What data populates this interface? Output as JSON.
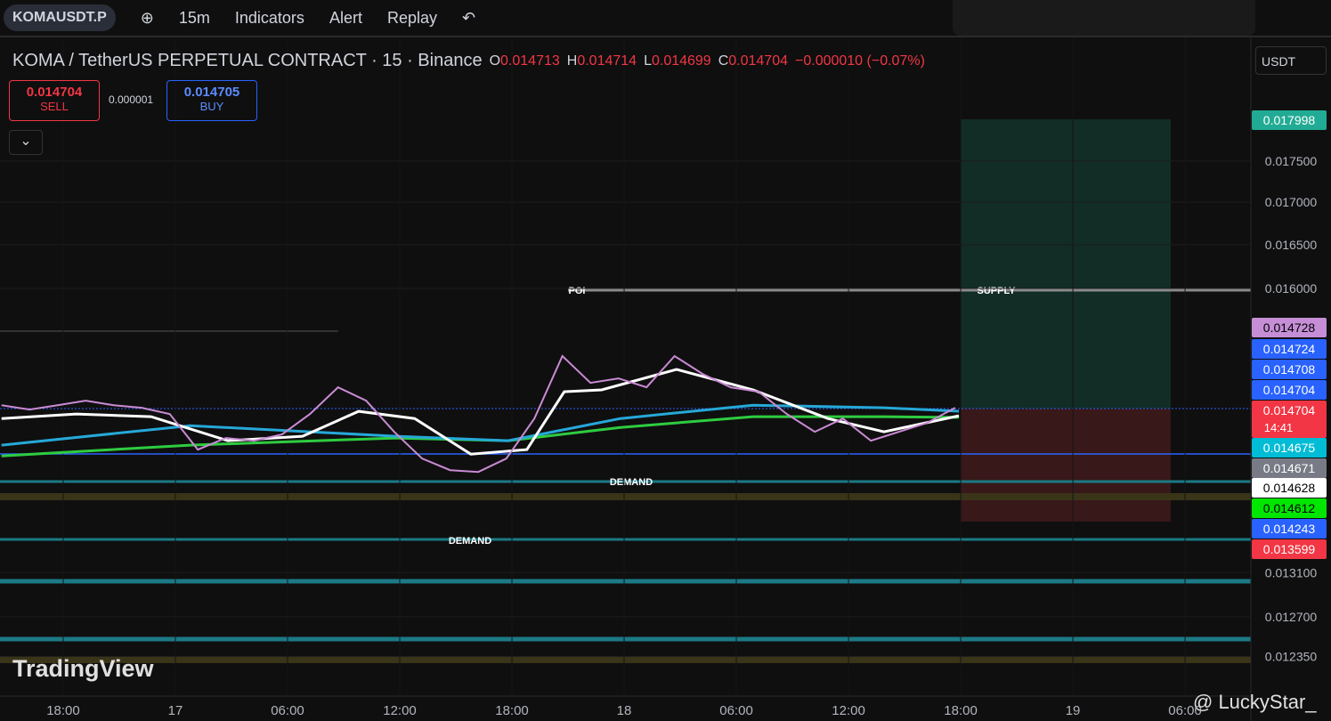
{
  "toolbar": {
    "symbol": "KOMAUSDT.P",
    "interval": "15m",
    "indicators": "Indicators",
    "alert": "Alert",
    "replay": "Replay"
  },
  "legend": {
    "title": "KOMA / TetherUS PERPETUAL CONTRACT · 15 · Binance",
    "ohlc": [
      {
        "label": "O",
        "value": 0.014713
      },
      {
        "label": "H",
        "value": 0.014714
      },
      {
        "label": "L",
        "value": 0.014699
      },
      {
        "label": "C",
        "value": 0.014704
      }
    ],
    "change": "−0.000010 (−0.07%)"
  },
  "trade": {
    "sell_price": 0.014704,
    "sell_label": "SELL",
    "spread": 1e-06,
    "buy_price": 0.014705,
    "buy_label": "BUY"
  },
  "currency": "USDT",
  "chart_data": {
    "type": "line",
    "log_scale": true,
    "grid": true,
    "xlim": [
      14.62,
      81.52
    ],
    "xticks": [
      {
        "value": 18,
        "label": "18:00"
      },
      {
        "value": 24,
        "label": "17"
      },
      {
        "value": 30,
        "label": "06:00"
      },
      {
        "value": 36,
        "label": "12:00"
      },
      {
        "value": 42,
        "label": "18:00"
      },
      {
        "value": 48,
        "label": "18"
      },
      {
        "value": 54,
        "label": "06:00"
      },
      {
        "value": 60,
        "label": "12:00"
      },
      {
        "value": 66,
        "label": "18:00"
      },
      {
        "value": 72,
        "label": "19"
      },
      {
        "value": 78,
        "label": "06:00"
      }
    ],
    "ylim": [
      0.01201,
      0.01909
    ],
    "yticks": [
      {
        "value": 0.0175,
        "label": "0.017500"
      },
      {
        "value": 0.017,
        "label": "0.017000"
      },
      {
        "value": 0.0165,
        "label": "0.016500"
      },
      {
        "value": 0.016,
        "label": "0.016000"
      },
      {
        "value": 0.0131,
        "label": "0.013100"
      },
      {
        "value": 0.0127,
        "label": "0.012700"
      },
      {
        "value": 0.01235,
        "label": "0.012350"
      }
    ],
    "series": [
      {
        "color": "#c98bd4",
        "x": [
          14.7,
          16.2,
          17.7,
          19.2,
          20.7,
          22.2,
          23.7,
          25.2,
          26.7,
          28.2,
          29.7,
          31.2,
          32.7,
          34.2,
          35.7,
          37.2,
          38.7,
          40.2,
          41.7,
          43.2,
          44.7,
          46.2,
          47.7,
          49.2,
          50.7,
          52.2,
          53.7,
          55.2,
          56.7,
          58.2,
          59.7,
          61.2,
          62.7,
          64.2,
          65.7
        ],
        "values": [
          0.014738,
          0.014692,
          0.014738,
          0.014785,
          0.014738,
          0.014711,
          0.014646,
          0.014284,
          0.014401,
          0.014374,
          0.014437,
          0.014646,
          0.014924,
          0.014785,
          0.014464,
          0.014194,
          0.014079,
          0.014061,
          0.014194,
          0.0146,
          0.015256,
          0.014971,
          0.015018,
          0.014924,
          0.015256,
          0.015065,
          0.014924,
          0.014878,
          0.014646,
          0.014464,
          0.0146,
          0.014374,
          0.014464,
          0.014555,
          0.014711
        ]
      },
      {
        "color": "#ffffff",
        "x": [
          14.7,
          18.7,
          22.7,
          26.8,
          30.8,
          33.8,
          36.8,
          39.8,
          42.8,
          44.8,
          46.8,
          50.8,
          54.9,
          58.9,
          61.9,
          65.9
        ],
        "values": [
          0.0146,
          0.014646,
          0.014619,
          0.014374,
          0.014419,
          0.014674,
          0.0146,
          0.014239,
          0.014284,
          0.014878,
          0.014897,
          0.015113,
          0.014897,
          0.0146,
          0.014464,
          0.014628
        ]
      },
      {
        "color": "#26a8d8",
        "x": [
          14.7,
          24.8,
          35.8,
          41.8,
          47.8,
          54.9,
          61.9,
          65.9
        ],
        "values": [
          0.014329,
          0.014527,
          0.014419,
          0.014374,
          0.0146,
          0.014738,
          0.014711,
          0.014675
        ]
      },
      {
        "color": "#2ecc40",
        "x": [
          14.7,
          24.8,
          35.8,
          41.8,
          47.8,
          54.9,
          61.9,
          65.9
        ],
        "values": [
          0.014221,
          0.014329,
          0.014401,
          0.014374,
          0.014509,
          0.014619,
          0.014619,
          0.014612
        ]
      }
    ],
    "annotations": [
      "POI",
      "SUPPLY",
      "DEMAND",
      "DEMAND"
    ],
    "price_badges": [
      {
        "value": 0.017998,
        "color": "#22ab94"
      },
      {
        "value": 0.014728,
        "color": "#c58ed6"
      },
      {
        "value": 0.014724,
        "color": "#2962ff"
      },
      {
        "value": 0.014708,
        "color": "#2962ff"
      },
      {
        "value": 0.014704,
        "color": "#2962ff"
      },
      {
        "value": 0.014704,
        "color": "#f23645"
      },
      {
        "value": 0.014675,
        "color": "#00bcd4"
      },
      {
        "value": 0.014671,
        "color": "#787b86"
      },
      {
        "value": 0.014628,
        "color": "#ffffff"
      },
      {
        "value": 0.014612,
        "color": "#00e600"
      },
      {
        "value": 0.014243,
        "color": "#2962ff"
      },
      {
        "value": 0.013599,
        "color": "#f23645"
      }
    ],
    "countdown": "14:41"
  },
  "brand": "TradingView",
  "watermark": "@ LuckyStar_"
}
